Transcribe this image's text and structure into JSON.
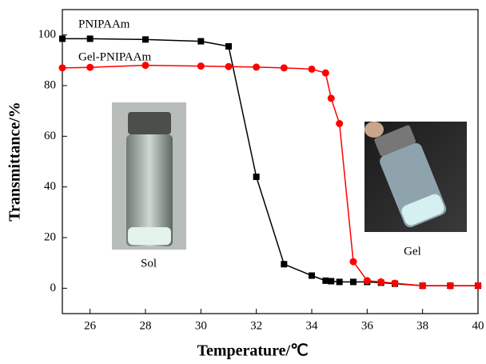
{
  "chart_data": {
    "type": "line",
    "x_label": "Temperature/℃",
    "y_label": "Transmittance/%",
    "x": [
      25,
      26,
      28,
      30,
      31,
      32,
      33,
      34,
      34.5,
      34.7,
      35,
      35.5,
      36,
      36.5,
      37,
      38,
      39,
      40
    ],
    "series": [
      {
        "name": "PNIPAAm",
        "color": "#000000",
        "marker": "square",
        "values": [
          98.5,
          98.5,
          98.2,
          97.5,
          95.5,
          44,
          9.5,
          5,
          3,
          2.8,
          2.5,
          2.5,
          2.5,
          2.2,
          1.8,
          1,
          1,
          1
        ]
      },
      {
        "name": "Gel-PNIPAAm",
        "color": "#ff0000",
        "marker": "circle",
        "values": [
          87,
          87.2,
          88,
          87.7,
          87.5,
          87.3,
          87,
          86.5,
          85,
          75,
          65,
          10.5,
          3,
          2.5,
          2,
          1,
          1,
          1
        ]
      }
    ],
    "annotations": [
      "Sol",
      "Gel"
    ],
    "xlim": [
      25,
      40
    ],
    "xticks": [
      26,
      28,
      30,
      32,
      34,
      36,
      38,
      40
    ],
    "ylim": [
      -10,
      110
    ],
    "yticks": [
      0,
      20,
      40,
      60,
      80,
      100
    ]
  }
}
